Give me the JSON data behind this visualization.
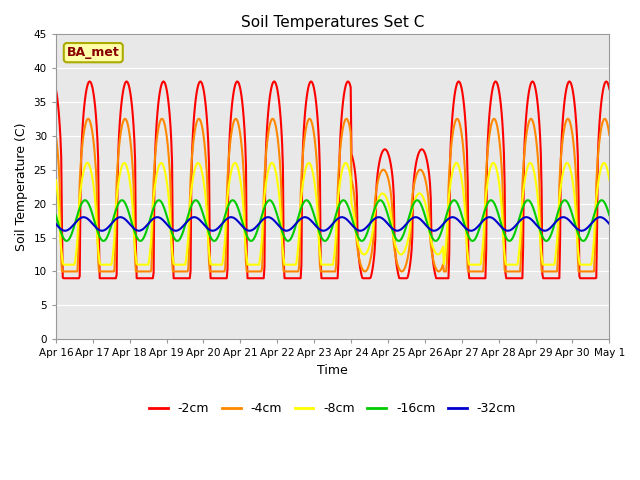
{
  "title": "Soil Temperatures Set C",
  "xlabel": "Time",
  "ylabel": "Soil Temperature (C)",
  "ylim": [
    0,
    45
  ],
  "yticks": [
    0,
    5,
    10,
    15,
    20,
    25,
    30,
    35,
    40,
    45
  ],
  "annotation": "BA_met",
  "fig_facecolor": "#ffffff",
  "plot_bg_color": "#e8e8e8",
  "line_colors": {
    "-2cm": "#ff0000",
    "-4cm": "#ff8800",
    "-8cm": "#ffff00",
    "-16cm": "#00cc00",
    "-32cm": "#0000cc"
  },
  "xtick_labels": [
    "Apr 16",
    "Apr 17",
    "Apr 18",
    "Apr 19",
    "Apr 20",
    "Apr 21",
    "Apr 22",
    "Apr 23",
    "Apr 24",
    "Apr 25",
    "Apr 26",
    "Apr 27",
    "Apr 28",
    "Apr 29",
    "Apr 30",
    "May 1"
  ],
  "figsize": [
    6.4,
    4.8
  ],
  "dpi": 100
}
